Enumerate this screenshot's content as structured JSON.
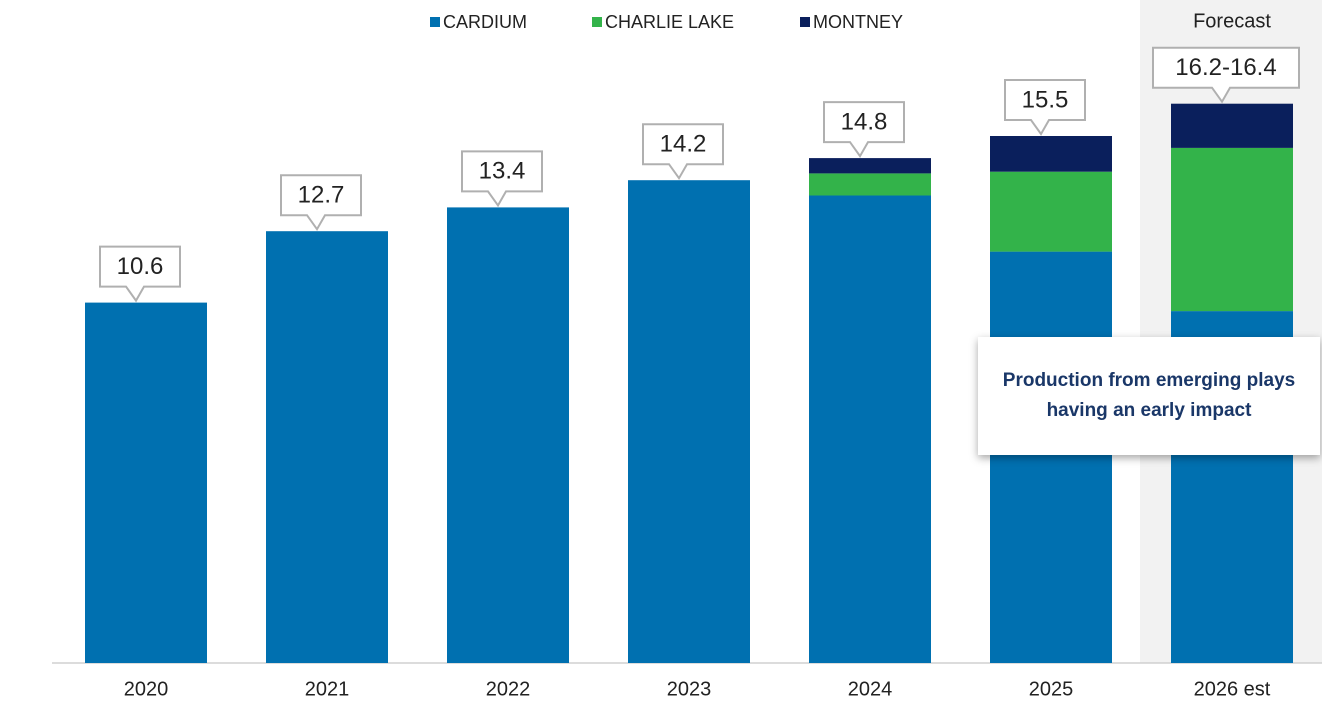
{
  "chart_data": {
    "type": "stacked_bar",
    "categories": [
      "2020",
      "2021",
      "2022",
      "2023",
      "2024",
      "2025",
      "2026 est"
    ],
    "series": [
      {
        "name": "CARDIUM",
        "color": "#0070b0",
        "values": [
          10.6,
          12.7,
          13.4,
          14.2,
          13.75,
          12.1,
          10.35
        ]
      },
      {
        "name": "CHARLIE LAKE",
        "color": "#33b34a",
        "values": [
          null,
          null,
          null,
          null,
          0.65,
          2.35,
          4.8
        ]
      },
      {
        "name": "MONTNEY",
        "color": "#0a1f5c",
        "values": [
          null,
          null,
          null,
          null,
          0.45,
          1.05,
          1.3
        ]
      }
    ],
    "total_labels": [
      "10.6",
      "12.7",
      "13.4",
      "14.2",
      "14.8",
      "15.5",
      "16.2-16.4"
    ],
    "ylim": [
      0,
      19.5
    ],
    "forecast_label": "Forecast",
    "annotation": "Production from emerging plays having an early impact"
  }
}
